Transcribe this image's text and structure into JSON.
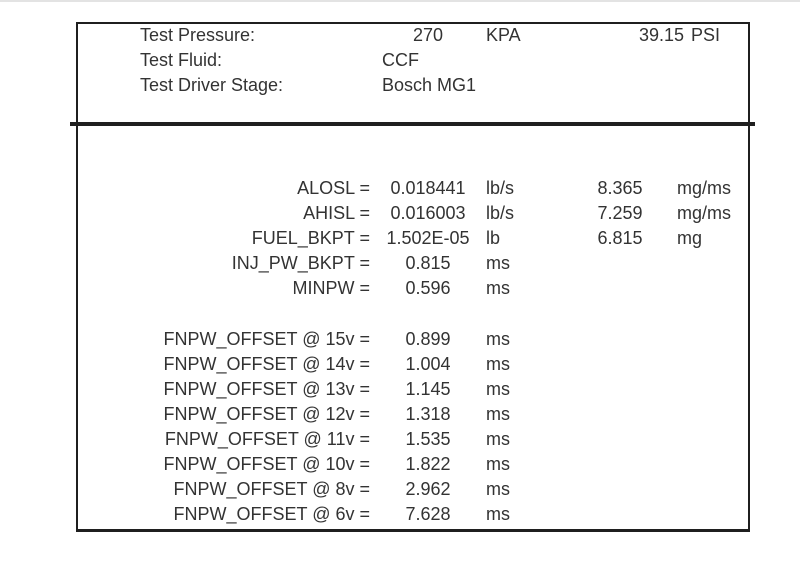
{
  "page": {
    "background_color": "#ffffff",
    "border_color": "#1f1f1f",
    "text_color": "#333333"
  },
  "header": {
    "rows": [
      {
        "label": "Test Pressure:",
        "value": "270",
        "unit": "KPA",
        "value2": "39.15",
        "unit2": "PSI"
      },
      {
        "label": "Test Fluid:",
        "value": "CCF",
        "unit": "",
        "value2": "",
        "unit2": ""
      },
      {
        "label": "Test Driver Stage:",
        "value": "Bosch MG1",
        "unit": "",
        "value2": "",
        "unit2": ""
      }
    ]
  },
  "parameters": {
    "rows": [
      {
        "label": "ALOSL =",
        "value": "0.018441",
        "unit": "lb/s",
        "value2": "8.365",
        "unit2": "mg/ms"
      },
      {
        "label": "AHISL =",
        "value": "0.016003",
        "unit": "lb/s",
        "value2": "7.259",
        "unit2": "mg/ms"
      },
      {
        "label": "FUEL_BKPT =",
        "value": "1.502E-05",
        "unit": "lb",
        "value2": "6.815",
        "unit2": "mg"
      },
      {
        "label": "INJ_PW_BKPT =",
        "value": "0.815",
        "unit": "ms",
        "value2": "",
        "unit2": ""
      },
      {
        "label": "MINPW =",
        "value": "0.596",
        "unit": "ms",
        "value2": "",
        "unit2": ""
      }
    ]
  },
  "offsets": {
    "rows": [
      {
        "label": "FNPW_OFFSET @ 15v =",
        "value": "0.899",
        "unit": "ms",
        "value2": "",
        "unit2": ""
      },
      {
        "label": "FNPW_OFFSET @ 14v =",
        "value": "1.004",
        "unit": "ms",
        "value2": "",
        "unit2": ""
      },
      {
        "label": "FNPW_OFFSET @ 13v =",
        "value": "1.145",
        "unit": "ms",
        "value2": "",
        "unit2": ""
      },
      {
        "label": "FNPW_OFFSET @ 12v =",
        "value": "1.318",
        "unit": "ms",
        "value2": "",
        "unit2": ""
      },
      {
        "label": "FNPW_OFFSET @ 11v =",
        "value": "1.535",
        "unit": "ms",
        "value2": "",
        "unit2": ""
      },
      {
        "label": "FNPW_OFFSET @ 10v =",
        "value": "1.822",
        "unit": "ms",
        "value2": "",
        "unit2": ""
      },
      {
        "label": "FNPW_OFFSET @ 8v =",
        "value": "2.962",
        "unit": "ms",
        "value2": "",
        "unit2": ""
      },
      {
        "label": "FNPW_OFFSET @ 6v =",
        "value": "7.628",
        "unit": "ms",
        "value2": "",
        "unit2": ""
      }
    ]
  }
}
